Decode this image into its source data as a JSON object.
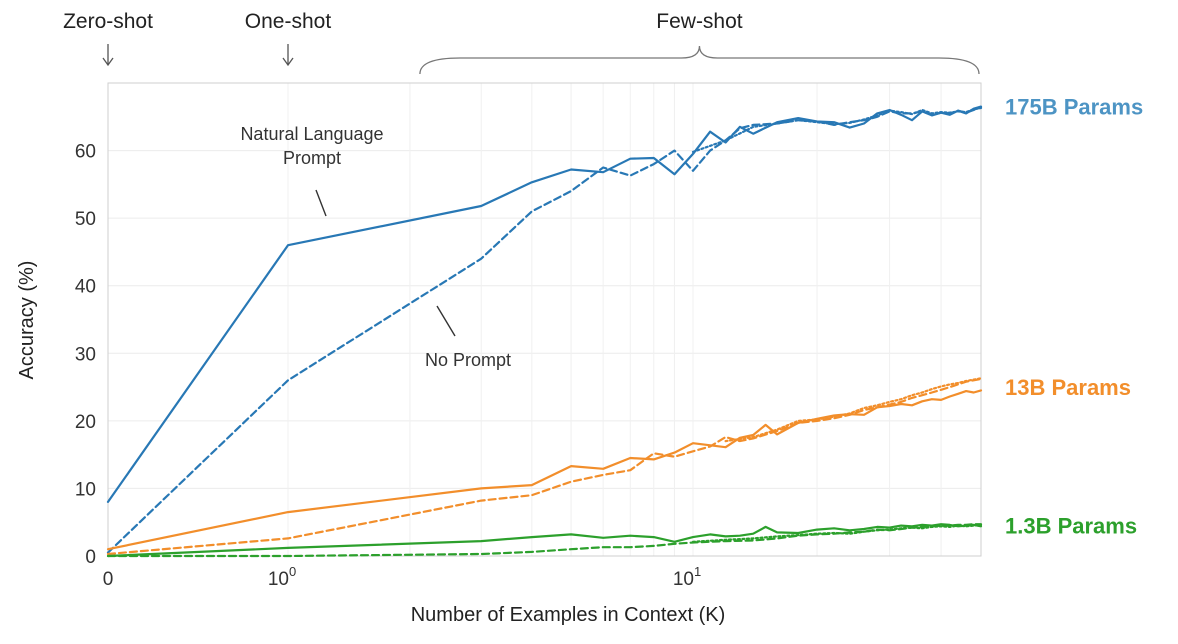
{
  "chart_data": {
    "type": "line",
    "xlabel": "Number of Examples in Context  (K)",
    "ylabel": "Accuracy (%)",
    "x_scale": "symlog",
    "xlim": [
      0,
      50
    ],
    "ylim": [
      0,
      70
    ],
    "yticks": [
      0,
      10,
      20,
      30,
      40,
      50,
      60
    ],
    "xticks": [
      {
        "value": 0,
        "base": "0",
        "exp": ""
      },
      {
        "value": 1,
        "base": "10",
        "exp": "0"
      },
      {
        "value": 10,
        "base": "10",
        "exp": "1"
      }
    ],
    "grid": true,
    "regions": [
      {
        "label": "Zero-shot",
        "x": 0,
        "marker": "arrow"
      },
      {
        "label": "One-shot",
        "x": 1,
        "marker": "arrow"
      },
      {
        "label": "Few-shot",
        "x_range": [
          2,
          50
        ],
        "marker": "brace"
      }
    ],
    "annotations": [
      {
        "text": [
          "Natural Language",
          "Prompt"
        ],
        "points_to": {
          "x": 1.6,
          "y": 49
        }
      },
      {
        "text": [
          "No Prompt"
        ],
        "points_to": {
          "x": 4.2,
          "y": 37
        }
      }
    ],
    "series": [
      {
        "group": "175B Params",
        "color": "#2878b5",
        "style": "solid",
        "x": [
          0,
          1,
          3,
          4,
          5,
          6,
          7,
          8,
          9,
          10,
          11,
          12,
          13,
          14,
          16,
          18,
          20,
          22,
          24,
          26,
          28,
          30,
          32,
          34,
          36,
          38,
          40,
          42,
          44,
          46,
          48,
          50
        ],
        "y": [
          8,
          46,
          51.8,
          55.3,
          57.2,
          56.8,
          58.8,
          58.9,
          56.5,
          59.5,
          62.8,
          61.2,
          63.5,
          62.5,
          64.2,
          64.8,
          64.3,
          64.2,
          63.4,
          64,
          65.5,
          66,
          65.3,
          64.5,
          65.8,
          65.2,
          65.6,
          65.3,
          65.9,
          65.5,
          66.2,
          66.5
        ]
      },
      {
        "group": "175B Params",
        "color": "#2878b5",
        "style": "dashed",
        "x": [
          0,
          1,
          3,
          4,
          5,
          6,
          7,
          8,
          9,
          10,
          11,
          12,
          13,
          14,
          16,
          18,
          20,
          22,
          24,
          26,
          28,
          30,
          32,
          34,
          36,
          38,
          40,
          42,
          44,
          46,
          48,
          50
        ],
        "y": [
          0.5,
          26,
          44,
          51,
          54,
          57.5,
          56.3,
          58,
          60,
          57,
          60,
          61.5,
          63.3,
          63.8,
          64,
          64.5,
          64.3,
          63.8,
          64.2,
          64.5,
          65,
          65.8,
          65.5,
          65.5,
          65.8,
          65.3,
          65.6,
          65.5,
          65.9,
          65.6,
          66,
          66.4
        ]
      },
      {
        "group": "175B Params",
        "color": "#2878b5",
        "style": "dotted",
        "x": [
          10,
          12,
          14,
          16,
          18,
          20,
          22,
          24,
          26,
          28,
          30,
          32,
          34,
          36,
          38,
          40,
          42,
          44,
          46,
          48,
          50
        ],
        "y": [
          59.8,
          61.5,
          63.5,
          64,
          64.5,
          64.2,
          63.9,
          64.1,
          64.6,
          65.2,
          65.9,
          65.7,
          65.4,
          66,
          65.5,
          65.7,
          65.6,
          65.8,
          65.7,
          66.1,
          66.3
        ]
      },
      {
        "group": "13B Params",
        "color": "#f28e2b",
        "style": "solid",
        "x": [
          0,
          1,
          3,
          4,
          5,
          6,
          7,
          8,
          9,
          10,
          12,
          13,
          14,
          15,
          16,
          18,
          20,
          22,
          24,
          26,
          28,
          30,
          32,
          34,
          36,
          38,
          40,
          42,
          44,
          46,
          48,
          50
        ],
        "y": [
          1,
          6.5,
          10,
          10.5,
          13.3,
          12.9,
          14.5,
          14.3,
          15.3,
          16.7,
          16.1,
          17.5,
          17.9,
          19.4,
          18,
          19.7,
          20.3,
          20.8,
          21,
          20.9,
          22,
          22.2,
          22.5,
          22.3,
          22.9,
          23.2,
          23.1,
          23.6,
          24,
          24.4,
          24.2,
          24.5
        ]
      },
      {
        "group": "13B Params",
        "color": "#f28e2b",
        "style": "dashed",
        "x": [
          0,
          1,
          3,
          4,
          5,
          6,
          7,
          8,
          9,
          10,
          11,
          12,
          13,
          14,
          16,
          18,
          20,
          22,
          24,
          26,
          28,
          30,
          32,
          34,
          36,
          38,
          40,
          42,
          44,
          46,
          48,
          50
        ],
        "y": [
          0.3,
          2.6,
          8.2,
          9,
          11,
          12,
          12.7,
          15.2,
          14.7,
          15.5,
          16.2,
          17.6,
          17,
          17.4,
          18.5,
          19.7,
          20,
          20.4,
          20.9,
          21.6,
          22,
          22.4,
          22.8,
          23.4,
          23.8,
          24.2,
          24.6,
          25,
          25.4,
          25.8,
          26,
          26.2
        ]
      },
      {
        "group": "13B Params",
        "color": "#f28e2b",
        "style": "dotted",
        "x": [
          12,
          14,
          16,
          18,
          20,
          22,
          24,
          26,
          28,
          30,
          32,
          34,
          36,
          38,
          40,
          42,
          44,
          46,
          48,
          50
        ],
        "y": [
          17,
          17.6,
          18.7,
          20,
          20.2,
          20.6,
          21.1,
          21.9,
          22.3,
          22.8,
          23.2,
          23.8,
          24.2,
          24.7,
          25.1,
          25.4,
          25.6,
          25.9,
          26.1,
          26.3
        ]
      },
      {
        "group": "1.3B Params",
        "color": "#2ca02c",
        "style": "solid",
        "x": [
          0,
          1,
          3,
          4,
          5,
          6,
          7,
          8,
          9,
          10,
          11,
          12,
          13,
          14,
          15,
          16,
          18,
          20,
          22,
          24,
          26,
          28,
          30,
          32,
          34,
          36,
          38,
          40,
          42,
          44,
          46,
          48,
          50
        ],
        "y": [
          0,
          1.2,
          2.2,
          2.8,
          3.2,
          2.7,
          3,
          2.8,
          2.1,
          2.8,
          3.2,
          2.9,
          3,
          3.3,
          4.3,
          3.5,
          3.4,
          3.9,
          4.1,
          3.8,
          4,
          4.3,
          4.2,
          4.5,
          4.4,
          4.6,
          4.5,
          4.7,
          4.6,
          4.4,
          4.5,
          4.6,
          4.4
        ]
      },
      {
        "group": "1.3B Params",
        "color": "#2ca02c",
        "style": "dashed",
        "x": [
          0,
          1,
          3,
          4,
          5,
          6,
          7,
          8,
          9,
          10,
          12,
          14,
          16,
          18,
          20,
          22,
          24,
          26,
          28,
          30,
          32,
          34,
          36,
          38,
          40,
          42,
          44,
          46,
          48,
          50
        ],
        "y": [
          0,
          0,
          0.3,
          0.6,
          1,
          1.3,
          1.3,
          1.5,
          1.8,
          2,
          2.2,
          2.3,
          2.6,
          3,
          3.2,
          3.3,
          3.5,
          3.6,
          3.9,
          3.8,
          4,
          4.2,
          4.3,
          4.4,
          4.5,
          4.5,
          4.6,
          4.6,
          4.7,
          4.7
        ]
      },
      {
        "group": "1.3B Params",
        "color": "#2ca02c",
        "style": "dotted",
        "x": [
          10,
          12,
          14,
          16,
          18,
          20,
          22,
          24,
          26,
          28,
          30,
          32,
          34,
          36,
          38,
          40,
          42,
          44,
          46,
          48,
          50
        ],
        "y": [
          2.1,
          2.4,
          2.6,
          2.9,
          3.1,
          3.3,
          3.4,
          3.3,
          3.6,
          3.8,
          3.9,
          4.1,
          4.2,
          4.1,
          4.3,
          4.4,
          4.3,
          4.5,
          4.4,
          4.5,
          4.6
        ]
      }
    ],
    "series_labels": [
      {
        "text": "175B Params",
        "color": "#4d94c4",
        "at_y": 66.5
      },
      {
        "text": "13B Params",
        "color": "#f28e2b",
        "at_y": 25
      },
      {
        "text": "1.3B Params",
        "color": "#2ca02c",
        "at_y": 4.5
      }
    ]
  }
}
